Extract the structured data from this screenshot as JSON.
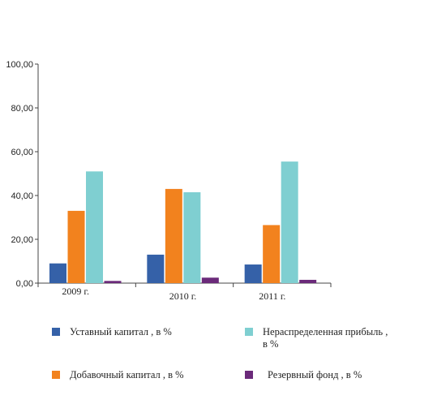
{
  "chart_data": {
    "type": "bar",
    "categories": [
      "2009 г.",
      "2010 г.",
      "2011 г."
    ],
    "series": [
      {
        "name": "Уставный капитал , в %",
        "color": "#3561a8",
        "values": [
          9.0,
          13.0,
          8.5
        ]
      },
      {
        "name": "Добавочный капитал , в %",
        "color": "#f2821e",
        "values": [
          33.0,
          43.0,
          26.5
        ]
      },
      {
        "name": "Нераспределенная прибыль , в %",
        "color": "#7fcfd1",
        "values": [
          51.0,
          41.5,
          55.5
        ]
      },
      {
        "name": "Резервный фонд , в %",
        "color": "#6b2a7a",
        "values": [
          1.0,
          2.5,
          1.5
        ]
      }
    ],
    "ylim": [
      0,
      100
    ],
    "yticks": [
      "0,00",
      "20,00",
      "40,00",
      "60,00",
      "80,00",
      "100,00"
    ],
    "ytick_values": [
      0,
      20,
      40,
      60,
      80,
      100
    ],
    "grid": false,
    "legend_position": "bottom"
  },
  "legend": {
    "items": [
      {
        "label": "Уставный капитал , в %",
        "color": "#3561a8"
      },
      {
        "label": "Нераспределенная прибыль ,\nв %",
        "color": "#7fcfd1"
      },
      {
        "label": "Добавочный капитал , в %",
        "color": "#f2821e"
      },
      {
        "label": "Резервный фонд , в %",
        "color": "#6b2a7a"
      }
    ]
  }
}
